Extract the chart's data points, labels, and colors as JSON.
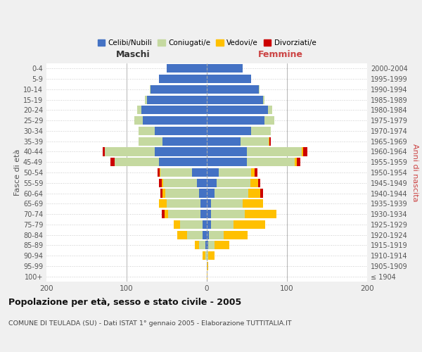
{
  "age_groups": [
    "100+",
    "95-99",
    "90-94",
    "85-89",
    "80-84",
    "75-79",
    "70-74",
    "65-69",
    "60-64",
    "55-59",
    "50-54",
    "45-49",
    "40-44",
    "35-39",
    "30-34",
    "25-29",
    "20-24",
    "15-19",
    "10-14",
    "5-9",
    "0-4"
  ],
  "birth_years": [
    "≤ 1904",
    "1905-1909",
    "1910-1914",
    "1915-1919",
    "1920-1924",
    "1925-1929",
    "1930-1934",
    "1935-1939",
    "1940-1944",
    "1945-1949",
    "1950-1954",
    "1955-1959",
    "1960-1964",
    "1965-1969",
    "1970-1974",
    "1975-1979",
    "1980-1984",
    "1985-1989",
    "1990-1994",
    "1995-1999",
    "2000-2004"
  ],
  "male_celibi": [
    0,
    0,
    0,
    2,
    5,
    5,
    8,
    8,
    10,
    12,
    18,
    60,
    65,
    55,
    65,
    80,
    82,
    75,
    70,
    60,
    50
  ],
  "male_coniugati": [
    0,
    0,
    2,
    8,
    20,
    28,
    40,
    42,
    42,
    42,
    40,
    55,
    62,
    30,
    20,
    10,
    5,
    2,
    1,
    0,
    0
  ],
  "male_vedovi": [
    0,
    0,
    3,
    5,
    12,
    8,
    5,
    10,
    3,
    2,
    1,
    0,
    0,
    0,
    0,
    0,
    0,
    0,
    0,
    0,
    0
  ],
  "male_divorziati": [
    0,
    0,
    0,
    0,
    0,
    0,
    3,
    0,
    3,
    4,
    2,
    5,
    3,
    0,
    0,
    0,
    0,
    0,
    0,
    0,
    0
  ],
  "fem_nubili": [
    0,
    0,
    0,
    2,
    3,
    5,
    5,
    5,
    10,
    12,
    15,
    50,
    50,
    42,
    55,
    72,
    76,
    70,
    65,
    55,
    45
  ],
  "fem_coniugate": [
    0,
    0,
    2,
    8,
    18,
    28,
    42,
    40,
    42,
    42,
    40,
    60,
    68,
    35,
    25,
    12,
    6,
    2,
    1,
    0,
    0
  ],
  "fem_vedove": [
    1,
    2,
    8,
    18,
    30,
    40,
    40,
    25,
    15,
    10,
    5,
    2,
    2,
    1,
    0,
    0,
    0,
    0,
    0,
    0,
    0
  ],
  "fem_divorziate": [
    0,
    0,
    0,
    0,
    0,
    0,
    0,
    0,
    3,
    3,
    3,
    5,
    5,
    2,
    0,
    0,
    0,
    0,
    0,
    0,
    0
  ],
  "colors": {
    "celibi": "#4472c4",
    "coniugati": "#c5d9a0",
    "vedovi": "#ffc000",
    "divorziati": "#cc0000"
  },
  "xlim": 200,
  "title": "Popolazione per età, sesso e stato civile - 2005",
  "subtitle": "COMUNE DI TEULADA (SU) - Dati ISTAT 1° gennaio 2005 - Elaborazione TUTTITALIA.IT",
  "ylabel_left": "Fasce di età",
  "ylabel_right": "Anni di nascita",
  "xlabel_left": "Maschi",
  "xlabel_right": "Femmine",
  "legend_labels": [
    "Celibi/Nubili",
    "Coniugati/e",
    "Vedovi/e",
    "Divorziati/e"
  ],
  "legend_colors": [
    "#4472c4",
    "#c5d9a0",
    "#ffc000",
    "#cc0000"
  ],
  "bg_color": "#f0f0f0",
  "plot_bg": "#ffffff"
}
